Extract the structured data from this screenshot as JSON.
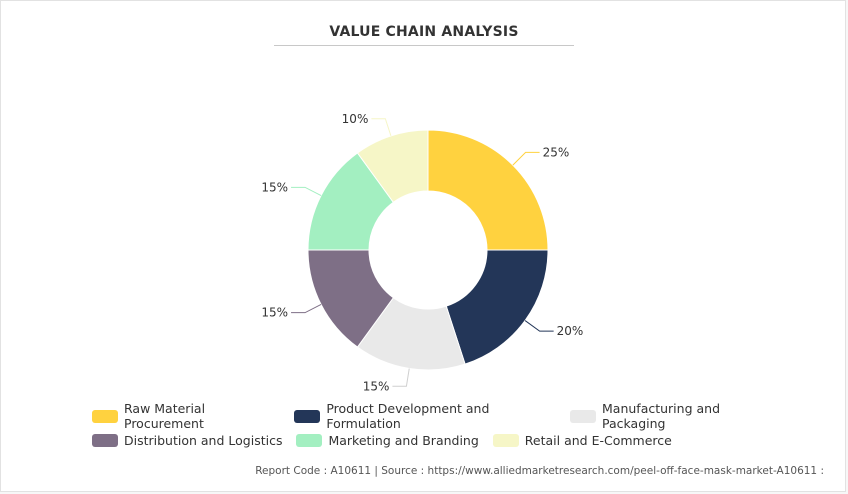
{
  "chart_data": {
    "type": "pie",
    "donut": true,
    "title": "VALUE CHAIN ANALYSIS",
    "legend_position": "bottom",
    "slices": [
      {
        "label": "Raw Material Procurement",
        "value": 25,
        "value_label": "25%",
        "color": "#ffd23f"
      },
      {
        "label": "Product Development and Formulation",
        "value": 20,
        "value_label": "20%",
        "color": "#233658"
      },
      {
        "label": "Manufacturing and Packaging",
        "value": 15,
        "value_label": "15%",
        "color": "#e9e9e9"
      },
      {
        "label": "Distribution and Logistics",
        "value": 15,
        "value_label": "15%",
        "color": "#7e6f86"
      },
      {
        "label": "Marketing and Branding",
        "value": 15,
        "value_label": "15%",
        "color": "#a3efc1"
      },
      {
        "label": "Retail and E-Commerce",
        "value": 10,
        "value_label": "10%",
        "color": "#f6f6c7"
      }
    ]
  },
  "footer": {
    "source_text": "Report Code : A10611  |  Source : https://www.alliedmarketresearch.com/peel-off-face-mask-market-A10611 :"
  }
}
